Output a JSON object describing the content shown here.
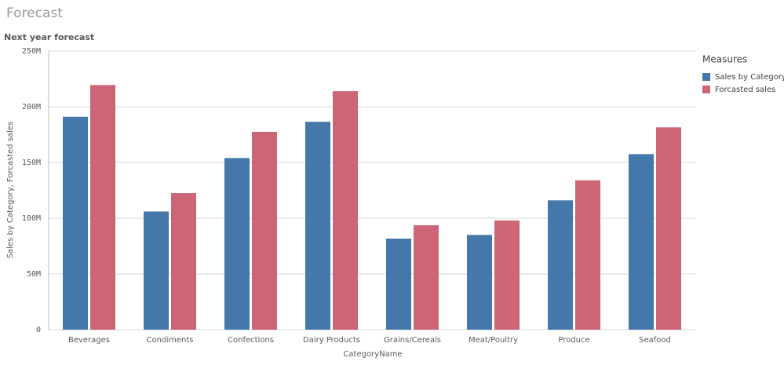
{
  "page_title": "Forecast",
  "chart_data": {
    "type": "bar",
    "title": "Next year forecast",
    "x_label": "CategoryName",
    "y_label": "Sales by Category, Forcasted sales",
    "legend_title": "Measures",
    "legend": "right",
    "categories": [
      "Beverages",
      "Condiments",
      "Confections",
      "Dairy Products",
      "Grains/Cereals",
      "Meat/Poultry",
      "Produce",
      "Seafood"
    ],
    "series": [
      {
        "name": "Sales by Category",
        "color": "#4477aa",
        "values": [
          191000000,
          106000000,
          154000000,
          186500000,
          81700000,
          85000000,
          116000000,
          157500000
        ]
      },
      {
        "name": "Forcasted sales",
        "color": "#cc6677",
        "values": [
          219500000,
          122500000,
          177500000,
          214000000,
          93700000,
          98000000,
          134000000,
          181500000
        ]
      }
    ],
    "ylim": [
      0,
      250000000
    ],
    "yticks": [
      0,
      {
        "value": 50000000,
        "label": "50M"
      },
      {
        "value": 100000000,
        "label": "100M"
      },
      {
        "value": 150000000,
        "label": "150M"
      },
      {
        "value": 200000000,
        "label": "200M"
      },
      {
        "value": 250000000,
        "label": "250M"
      }
    ],
    "grid": true
  }
}
